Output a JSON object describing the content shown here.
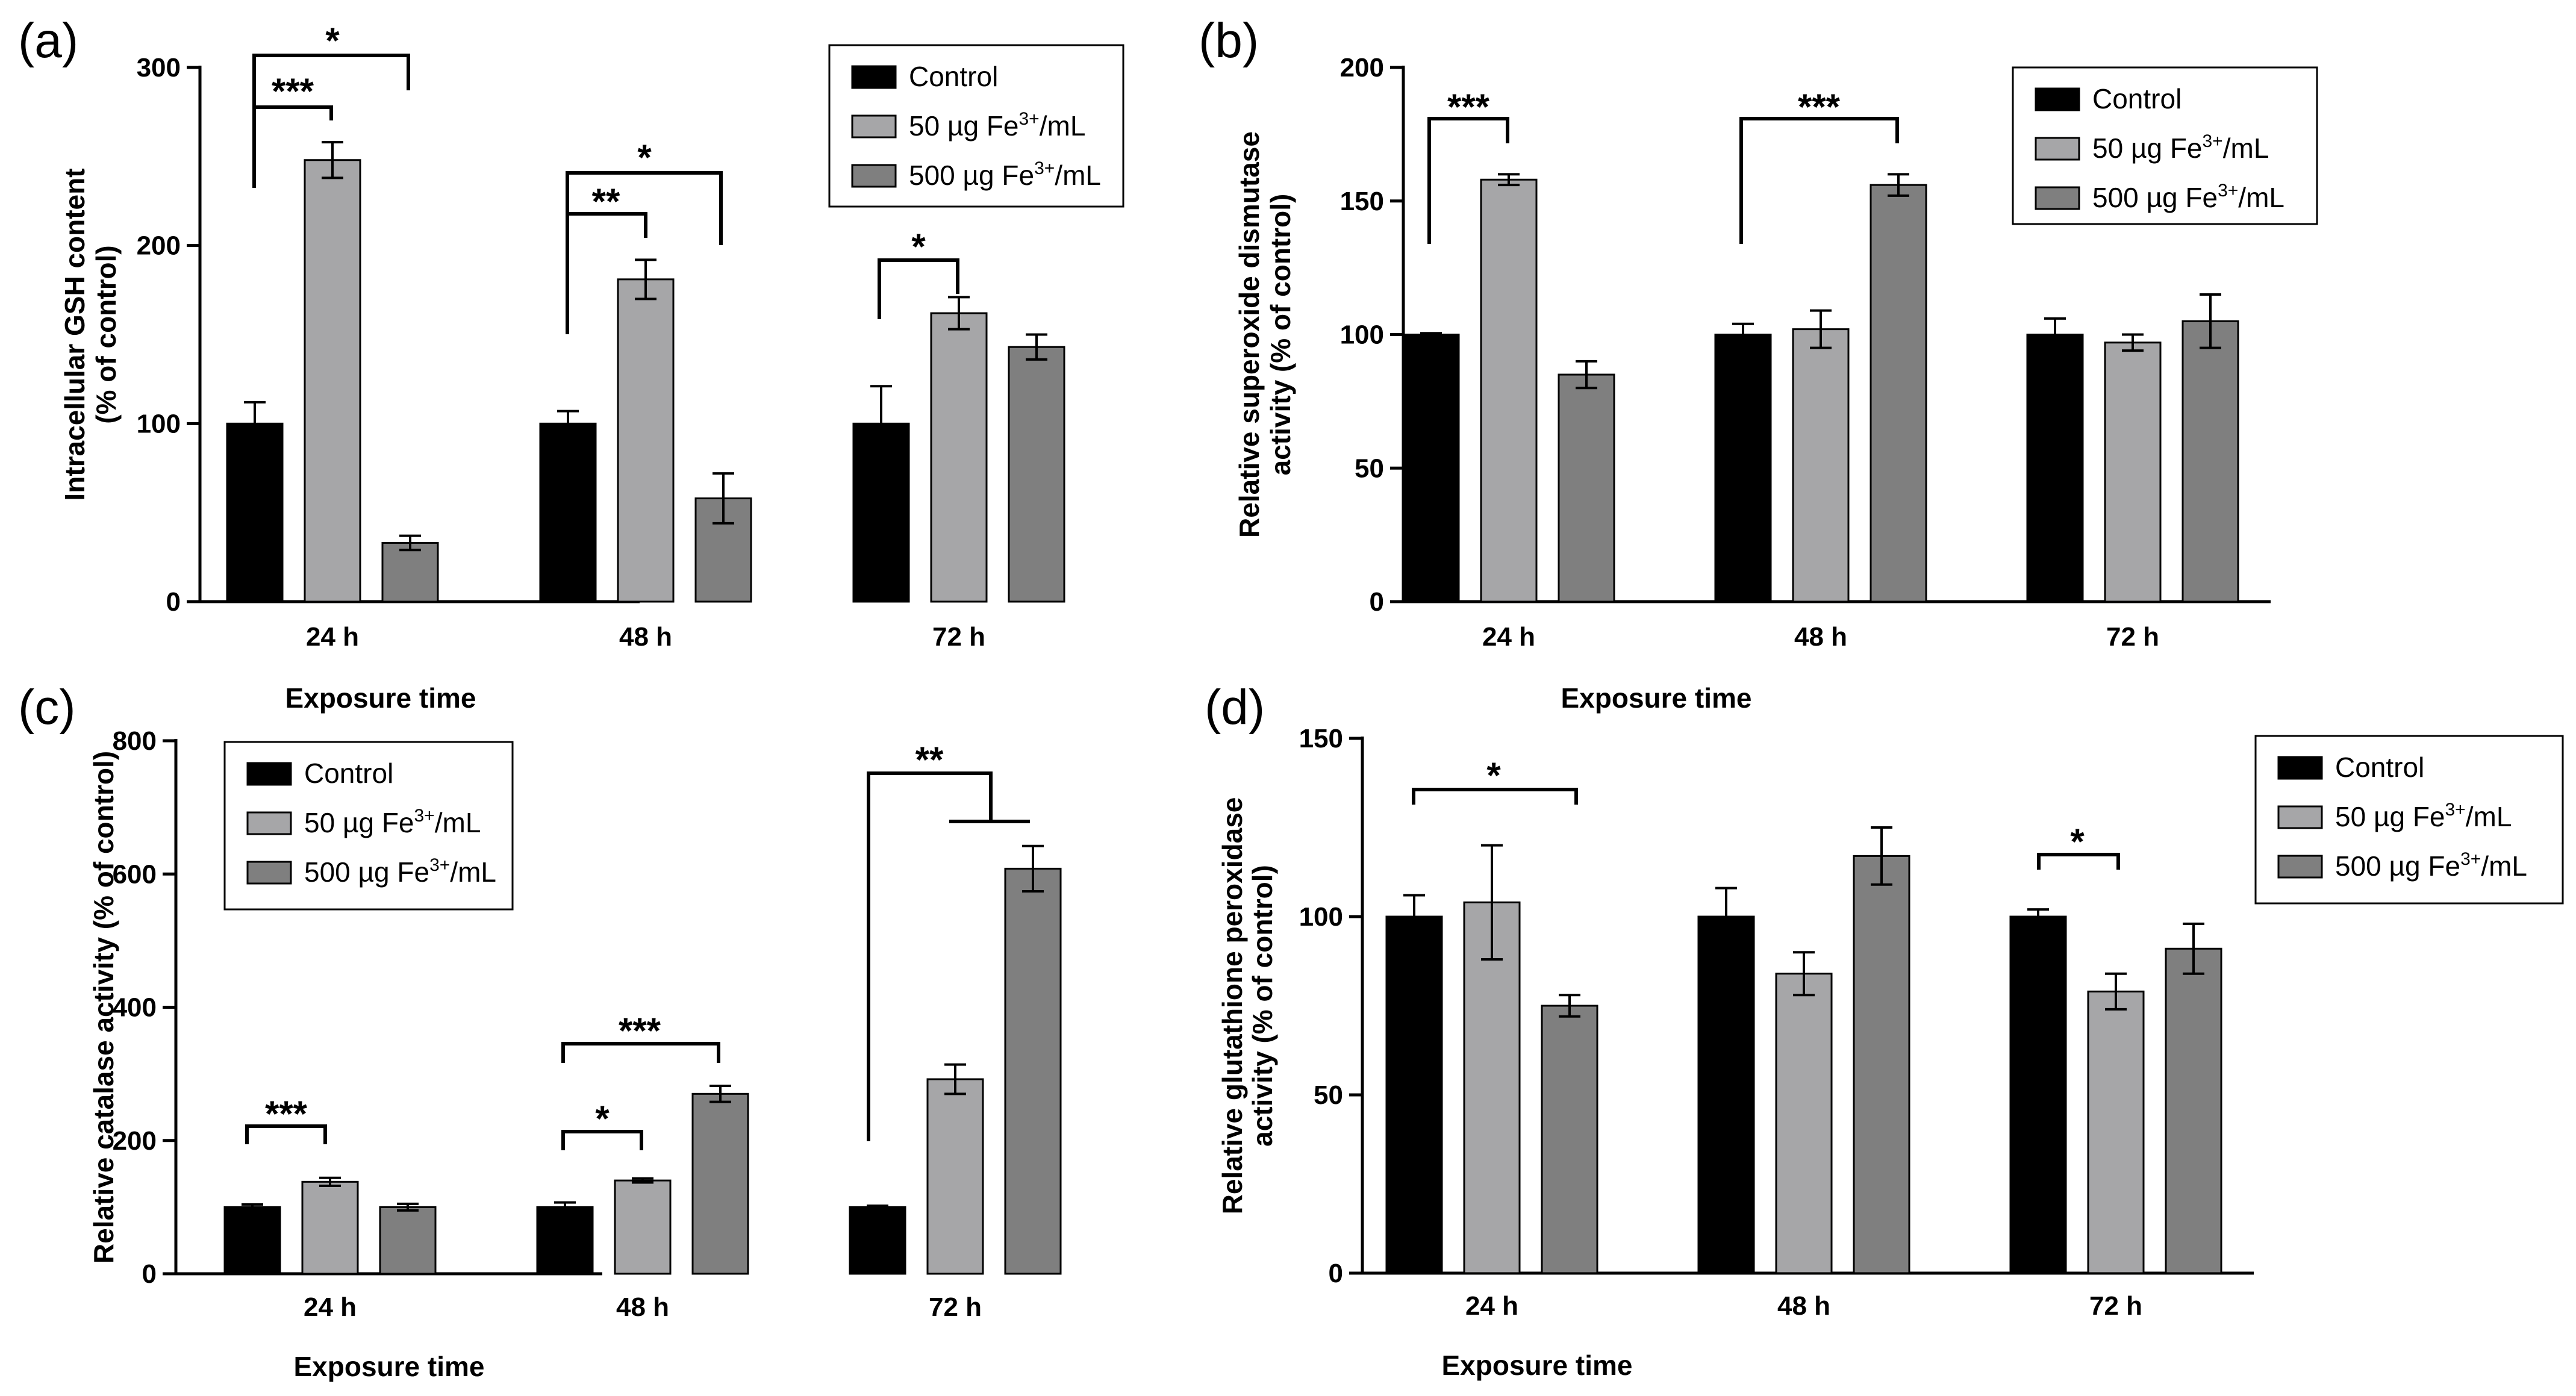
{
  "figure": {
    "colors": {
      "Control": "#000000",
      "50": "#a6a6a8",
      "500": "#7f7f7f",
      "axis": "#000000"
    },
    "legend_sup": "3+"
  },
  "chart_data": [
    {
      "type": "bar",
      "panel": "(a)",
      "title": "",
      "ylabel": [
        "Intracellular GSH content",
        "(% of control)"
      ],
      "xlabel": "Exposure time",
      "categories": [
        "24 h",
        "48 h",
        "72 h"
      ],
      "ylim": [
        0,
        300
      ],
      "yticks": [
        0,
        100,
        200,
        300
      ],
      "series": [
        {
          "name": "Control",
          "key": "Control",
          "legend_label": "Control",
          "values": [
            100,
            100,
            100
          ],
          "errors": [
            12,
            7,
            21
          ]
        },
        {
          "name": "50 µg Fe3+/mL",
          "key": "50",
          "legend_label": [
            "50 µg Fe",
            "/mL"
          ],
          "values": [
            248,
            181,
            162
          ],
          "errors": [
            10,
            11,
            9
          ]
        },
        {
          "name": "500 µg Fe3+/mL",
          "key": "500",
          "legend_label": [
            "500 µg Fe",
            "/mL"
          ],
          "values": [
            33,
            58,
            143
          ],
          "errors": [
            4,
            14,
            7
          ]
        }
      ],
      "legend_position": "top-right",
      "significance": [
        {
          "category": "24 h",
          "from": "Control",
          "to": "50 µg Fe3+/mL",
          "label": "***"
        },
        {
          "category": "24 h",
          "from": "Control",
          "to": "500 µg Fe3+/mL",
          "label": "*"
        },
        {
          "category": "48 h",
          "from": "Control",
          "to": "50 µg Fe3+/mL",
          "label": "**"
        },
        {
          "category": "48 h",
          "from": "Control",
          "to": "500 µg Fe3+/mL",
          "label": "*"
        },
        {
          "category": "72 h",
          "from": "Control",
          "to": "50 µg Fe3+/mL",
          "label": "*"
        }
      ]
    },
    {
      "type": "bar",
      "panel": "(b)",
      "title": "",
      "ylabel": [
        "Relative superoxide dismutase",
        "activity (% of control)"
      ],
      "xlabel": "Exposure time",
      "categories": [
        "24 h",
        "48 h",
        "72 h"
      ],
      "ylim": [
        0,
        200
      ],
      "yticks": [
        0,
        50,
        100,
        150,
        200
      ],
      "series": [
        {
          "name": "Control",
          "key": "Control",
          "legend_label": "Control",
          "values": [
            100,
            100,
            100
          ],
          "errors": [
            0.5,
            4,
            6
          ]
        },
        {
          "name": "50 µg Fe3+/mL",
          "key": "50",
          "legend_label": [
            "50 µg Fe",
            "/mL"
          ],
          "values": [
            158,
            102,
            97
          ],
          "errors": [
            2,
            7,
            3
          ]
        },
        {
          "name": "500 µg Fe3+/mL",
          "key": "500",
          "legend_label": [
            "500 µg Fe",
            "/mL"
          ],
          "values": [
            85,
            156,
            105
          ],
          "errors": [
            5,
            4,
            10
          ]
        }
      ],
      "legend_position": "top-right",
      "significance": [
        {
          "category": "24 h",
          "from": "Control",
          "to": "50 µg Fe3+/mL",
          "label": "***"
        },
        {
          "category": "48 h",
          "from": "Control",
          "to": "500 µg Fe3+/mL",
          "label": "***"
        }
      ]
    },
    {
      "type": "bar",
      "panel": "(c)",
      "title": "",
      "ylabel": [
        "Relative catalase activity (% of control)"
      ],
      "xlabel": "Exposure time",
      "categories": [
        "24 h",
        "48 h",
        "72 h"
      ],
      "ylim": [
        0,
        800
      ],
      "yticks": [
        0,
        200,
        400,
        600,
        800
      ],
      "series": [
        {
          "name": "Control",
          "key": "Control",
          "legend_label": "Control",
          "values": [
            100,
            100,
            100
          ],
          "errors": [
            4,
            7,
            2
          ]
        },
        {
          "name": "50 µg Fe3+/mL",
          "key": "50",
          "legend_label": [
            "50 µg Fe",
            "/mL"
          ],
          "values": [
            138,
            140,
            292
          ],
          "errors": [
            6,
            3,
            22
          ]
        },
        {
          "name": "500 µg Fe3+/mL",
          "key": "500",
          "legend_label": [
            "500 µg Fe",
            "/mL"
          ],
          "values": [
            100,
            270,
            608
          ],
          "errors": [
            5,
            12,
            34
          ]
        }
      ],
      "legend_position": "top-left",
      "significance": [
        {
          "category": "24 h",
          "from": "Control",
          "to": "50 µg Fe3+/mL",
          "label": "***"
        },
        {
          "category": "48 h",
          "from": "Control",
          "to": "50 µg Fe3+/mL",
          "label": "*"
        },
        {
          "category": "48 h",
          "from": "Control",
          "to": "500 µg Fe3+/mL",
          "label": "***"
        },
        {
          "category": "72 h",
          "from": "Control",
          "to": "50 µg Fe3+/mL and 500 µg Fe3+/mL",
          "label": "**"
        }
      ]
    },
    {
      "type": "bar",
      "panel": "(d)",
      "title": "",
      "ylabel": [
        "Relative glutathione peroxidase",
        "activity (% of control)"
      ],
      "xlabel": "Exposure time",
      "categories": [
        "24 h",
        "48 h",
        "72 h"
      ],
      "ylim": [
        0,
        150
      ],
      "yticks": [
        0,
        50,
        100,
        150
      ],
      "series": [
        {
          "name": "Control",
          "key": "Control",
          "legend_label": "Control",
          "values": [
            100,
            100,
            100
          ],
          "errors": [
            6,
            8,
            2
          ]
        },
        {
          "name": "50 µg Fe3+/mL",
          "key": "50",
          "legend_label": [
            "50 µg Fe",
            "/mL"
          ],
          "values": [
            104,
            84,
            79
          ],
          "errors": [
            16,
            6,
            5
          ]
        },
        {
          "name": "500 µg Fe3+/mL",
          "key": "500",
          "legend_label": [
            "500 µg Fe",
            "/mL"
          ],
          "values": [
            75,
            117,
            91
          ],
          "errors": [
            3,
            8,
            7
          ]
        }
      ],
      "legend_position": "top-right",
      "significance": [
        {
          "category": "24 h",
          "from": "Control",
          "to": "500 µg Fe3+/mL",
          "label": "*"
        },
        {
          "category": "72 h",
          "from": "Control",
          "to": "50 µg Fe3+/mL",
          "label": "*"
        }
      ]
    }
  ]
}
